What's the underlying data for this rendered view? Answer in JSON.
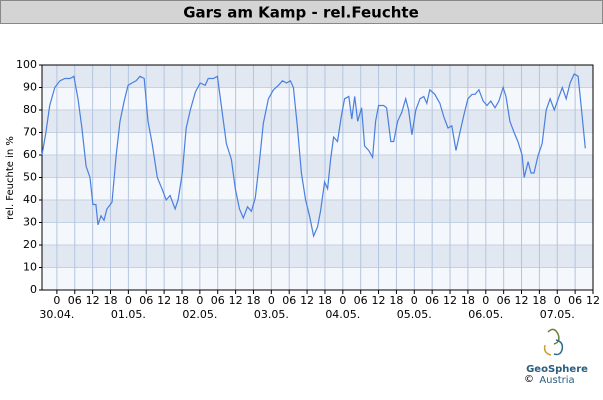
{
  "chart_data": {
    "type": "line",
    "title": "Gars am Kamp - rel.Feuchte",
    "y_label": "rel. Feuchte in %",
    "color": "#4a7fe0",
    "bands": true,
    "grid": true,
    "xlim": [
      -5,
      180
    ],
    "ylim": [
      0,
      100
    ],
    "yticks": [
      0,
      10,
      20,
      30,
      40,
      50,
      60,
      70,
      80,
      90,
      100
    ],
    "xticks": [
      0,
      {
        "value": 6,
        "label": "06"
      },
      12,
      18,
      {
        "value": 24,
        "label": "0"
      },
      {
        "value": 30,
        "label": "06"
      },
      {
        "value": 36,
        "label": "12"
      },
      {
        "value": 42,
        "label": "18"
      },
      {
        "value": 48,
        "label": "0"
      },
      {
        "value": 54,
        "label": "06"
      },
      {
        "value": 60,
        "label": "12"
      },
      {
        "value": 66,
        "label": "18"
      },
      {
        "value": 72,
        "label": "0"
      },
      {
        "value": 78,
        "label": "06"
      },
      {
        "value": 84,
        "label": "12"
      },
      {
        "value": 90,
        "label": "18"
      },
      {
        "value": 96,
        "label": "0"
      },
      {
        "value": 102,
        "label": "06"
      },
      {
        "value": 108,
        "label": "12"
      },
      {
        "value": 114,
        "label": "18"
      },
      {
        "value": 120,
        "label": "0"
      },
      {
        "value": 126,
        "label": "06"
      },
      {
        "value": 132,
        "label": "12"
      },
      {
        "value": 138,
        "label": "18"
      },
      {
        "value": 144,
        "label": "0"
      },
      {
        "value": 150,
        "label": "06"
      },
      {
        "value": 156,
        "label": "12"
      },
      {
        "value": 162,
        "label": "18"
      },
      {
        "value": 168,
        "label": "0"
      },
      {
        "value": 174,
        "label": "06"
      },
      {
        "value": 180,
        "label": "12"
      }
    ],
    "day_labels": [
      {
        "value": 0,
        "label": "30.04."
      },
      {
        "value": 24,
        "label": "01.05."
      },
      {
        "value": 48,
        "label": "02.05."
      },
      {
        "value": 72,
        "label": "03.05."
      },
      {
        "value": 96,
        "label": "04.05."
      },
      {
        "value": 120,
        "label": "05.05."
      },
      {
        "value": 144,
        "label": "06.05."
      },
      {
        "value": 168,
        "label": "07.05."
      }
    ],
    "x": [
      -5.0,
      -3.7,
      -2.4,
      -0.7,
      1.0,
      2.7,
      4.4,
      5.7,
      7.1,
      8.4,
      9.8,
      11.1,
      12.1,
      13.1,
      13.8,
      14.8,
      15.8,
      16.8,
      18.5,
      19.9,
      21.2,
      22.6,
      23.9,
      25.2,
      26.6,
      27.9,
      29.3,
      30.6,
      32.0,
      33.7,
      35.3,
      36.7,
      38.0,
      39.7,
      40.7,
      42.1,
      43.4,
      44.8,
      46.5,
      48.1,
      49.8,
      50.8,
      52.5,
      53.9,
      55.2,
      56.9,
      58.6,
      59.9,
      61.3,
      62.6,
      64.0,
      65.3,
      66.6,
      68.0,
      69.3,
      71.0,
      72.7,
      74.4,
      75.7,
      77.1,
      78.4,
      79.4,
      80.8,
      82.1,
      83.5,
      84.8,
      86.2,
      87.5,
      88.5,
      89.9,
      90.9,
      91.9,
      92.9,
      94.2,
      95.6,
      96.6,
      98.0,
      99.0,
      100.0,
      101.0,
      102.3,
      103.3,
      104.7,
      106.0,
      107.0,
      108.0,
      109.7,
      110.7,
      112.1,
      113.1,
      114.4,
      115.8,
      117.1,
      118.1,
      119.2,
      120.5,
      121.9,
      123.2,
      124.2,
      125.2,
      126.9,
      128.6,
      129.9,
      131.3,
      132.6,
      134.0,
      135.3,
      136.7,
      138.0,
      139.4,
      140.4,
      141.7,
      143.1,
      144.4,
      145.7,
      147.1,
      148.4,
      149.8,
      150.8,
      152.1,
      153.5,
      154.8,
      156.2,
      156.9,
      158.2,
      159.2,
      160.2,
      161.6,
      162.9,
      164.3,
      165.6,
      167.0,
      168.3,
      169.7,
      171.0,
      172.3,
      173.7,
      175.0,
      176.0,
      177.4
    ],
    "values": [
      60,
      70,
      82,
      90,
      93,
      94,
      94,
      95,
      85,
      72,
      55,
      50,
      38,
      38,
      29,
      33,
      31,
      36,
      39,
      60,
      75,
      84,
      91,
      92,
      93,
      95,
      94,
      75,
      65,
      50,
      45,
      40,
      42,
      36,
      40,
      52,
      72,
      80,
      88,
      92,
      91,
      94,
      94,
      95,
      82,
      65,
      58,
      45,
      36,
      32,
      37,
      35,
      41,
      57,
      74,
      85,
      89,
      91,
      93,
      92,
      93,
      90,
      72,
      52,
      40,
      33,
      24,
      28,
      35,
      48,
      45,
      58,
      68,
      66,
      78,
      85,
      86,
      76,
      86,
      75,
      81,
      64,
      62,
      59,
      75,
      82,
      82,
      81,
      66,
      66,
      75,
      79,
      85,
      80,
      69,
      80,
      85,
      86,
      83,
      89,
      87,
      83,
      77,
      72,
      73,
      62,
      70,
      78,
      85,
      87,
      87,
      89,
      84,
      82,
      84,
      81,
      84,
      90,
      86,
      75,
      70,
      66,
      60,
      50,
      57,
      52,
      52,
      60,
      65,
      80,
      85,
      80,
      85,
      90,
      85,
      92,
      96,
      95,
      82,
      63
    ]
  },
  "logo": {
    "copyright": "©",
    "name": "GeoSphere",
    "sub": "Austria"
  }
}
